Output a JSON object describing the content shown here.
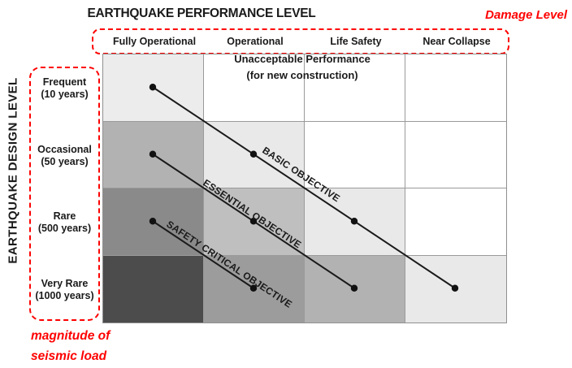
{
  "header": {
    "title": "EARTHQUAKE PERFORMANCE LEVEL",
    "damage_level": "Damage Level"
  },
  "y_axis": {
    "title": "EARTHQUAKE DESIGN LEVEL",
    "note": [
      "magnitude of",
      "seismic load"
    ]
  },
  "performance_levels": [
    "Fully Operational",
    "Operational",
    "Life Safety",
    "Near Collapse"
  ],
  "design_levels": [
    {
      "name": "Frequent",
      "period": "(10 years)"
    },
    {
      "name": "Occasional",
      "period": "(50 years)"
    },
    {
      "name": "Rare",
      "period": "(500 years)"
    },
    {
      "name": "Very Rare",
      "period": "(1000 years)"
    }
  ],
  "unacceptable_note": [
    "Unacceptable Performance",
    "(for new construction)"
  ],
  "objectives": [
    {
      "label": "BASIC OBJECTIVE",
      "cells": [
        [
          0,
          0
        ],
        [
          1,
          1
        ],
        [
          2,
          2
        ],
        [
          3,
          3
        ]
      ]
    },
    {
      "label": "ESSENTIAL OBJECTIVE",
      "cells": [
        [
          1,
          0
        ],
        [
          2,
          1
        ],
        [
          3,
          2
        ]
      ]
    },
    {
      "label": "SAFETY CRITICAL OBJECTIVE",
      "cells": [
        [
          2,
          0
        ],
        [
          3,
          1
        ]
      ]
    }
  ],
  "grid_shades": [
    [
      "#ececec",
      "#ffffff",
      "#ffffff",
      "#ffffff"
    ],
    [
      "#b2b2b2",
      "#e9e9e9",
      "#ffffff",
      "#ffffff"
    ],
    [
      "#8a8a8a",
      "#bfbfbf",
      "#e9e9e9",
      "#ffffff"
    ],
    [
      "#4c4c4c",
      "#9c9c9c",
      "#b2b2b2",
      "#e9e9e9"
    ]
  ],
  "colors": {
    "annotation_red": "#fe0000",
    "objective_line": "#1a1a1a",
    "dot": "#111111",
    "grid_line": "#9a9a9a"
  }
}
